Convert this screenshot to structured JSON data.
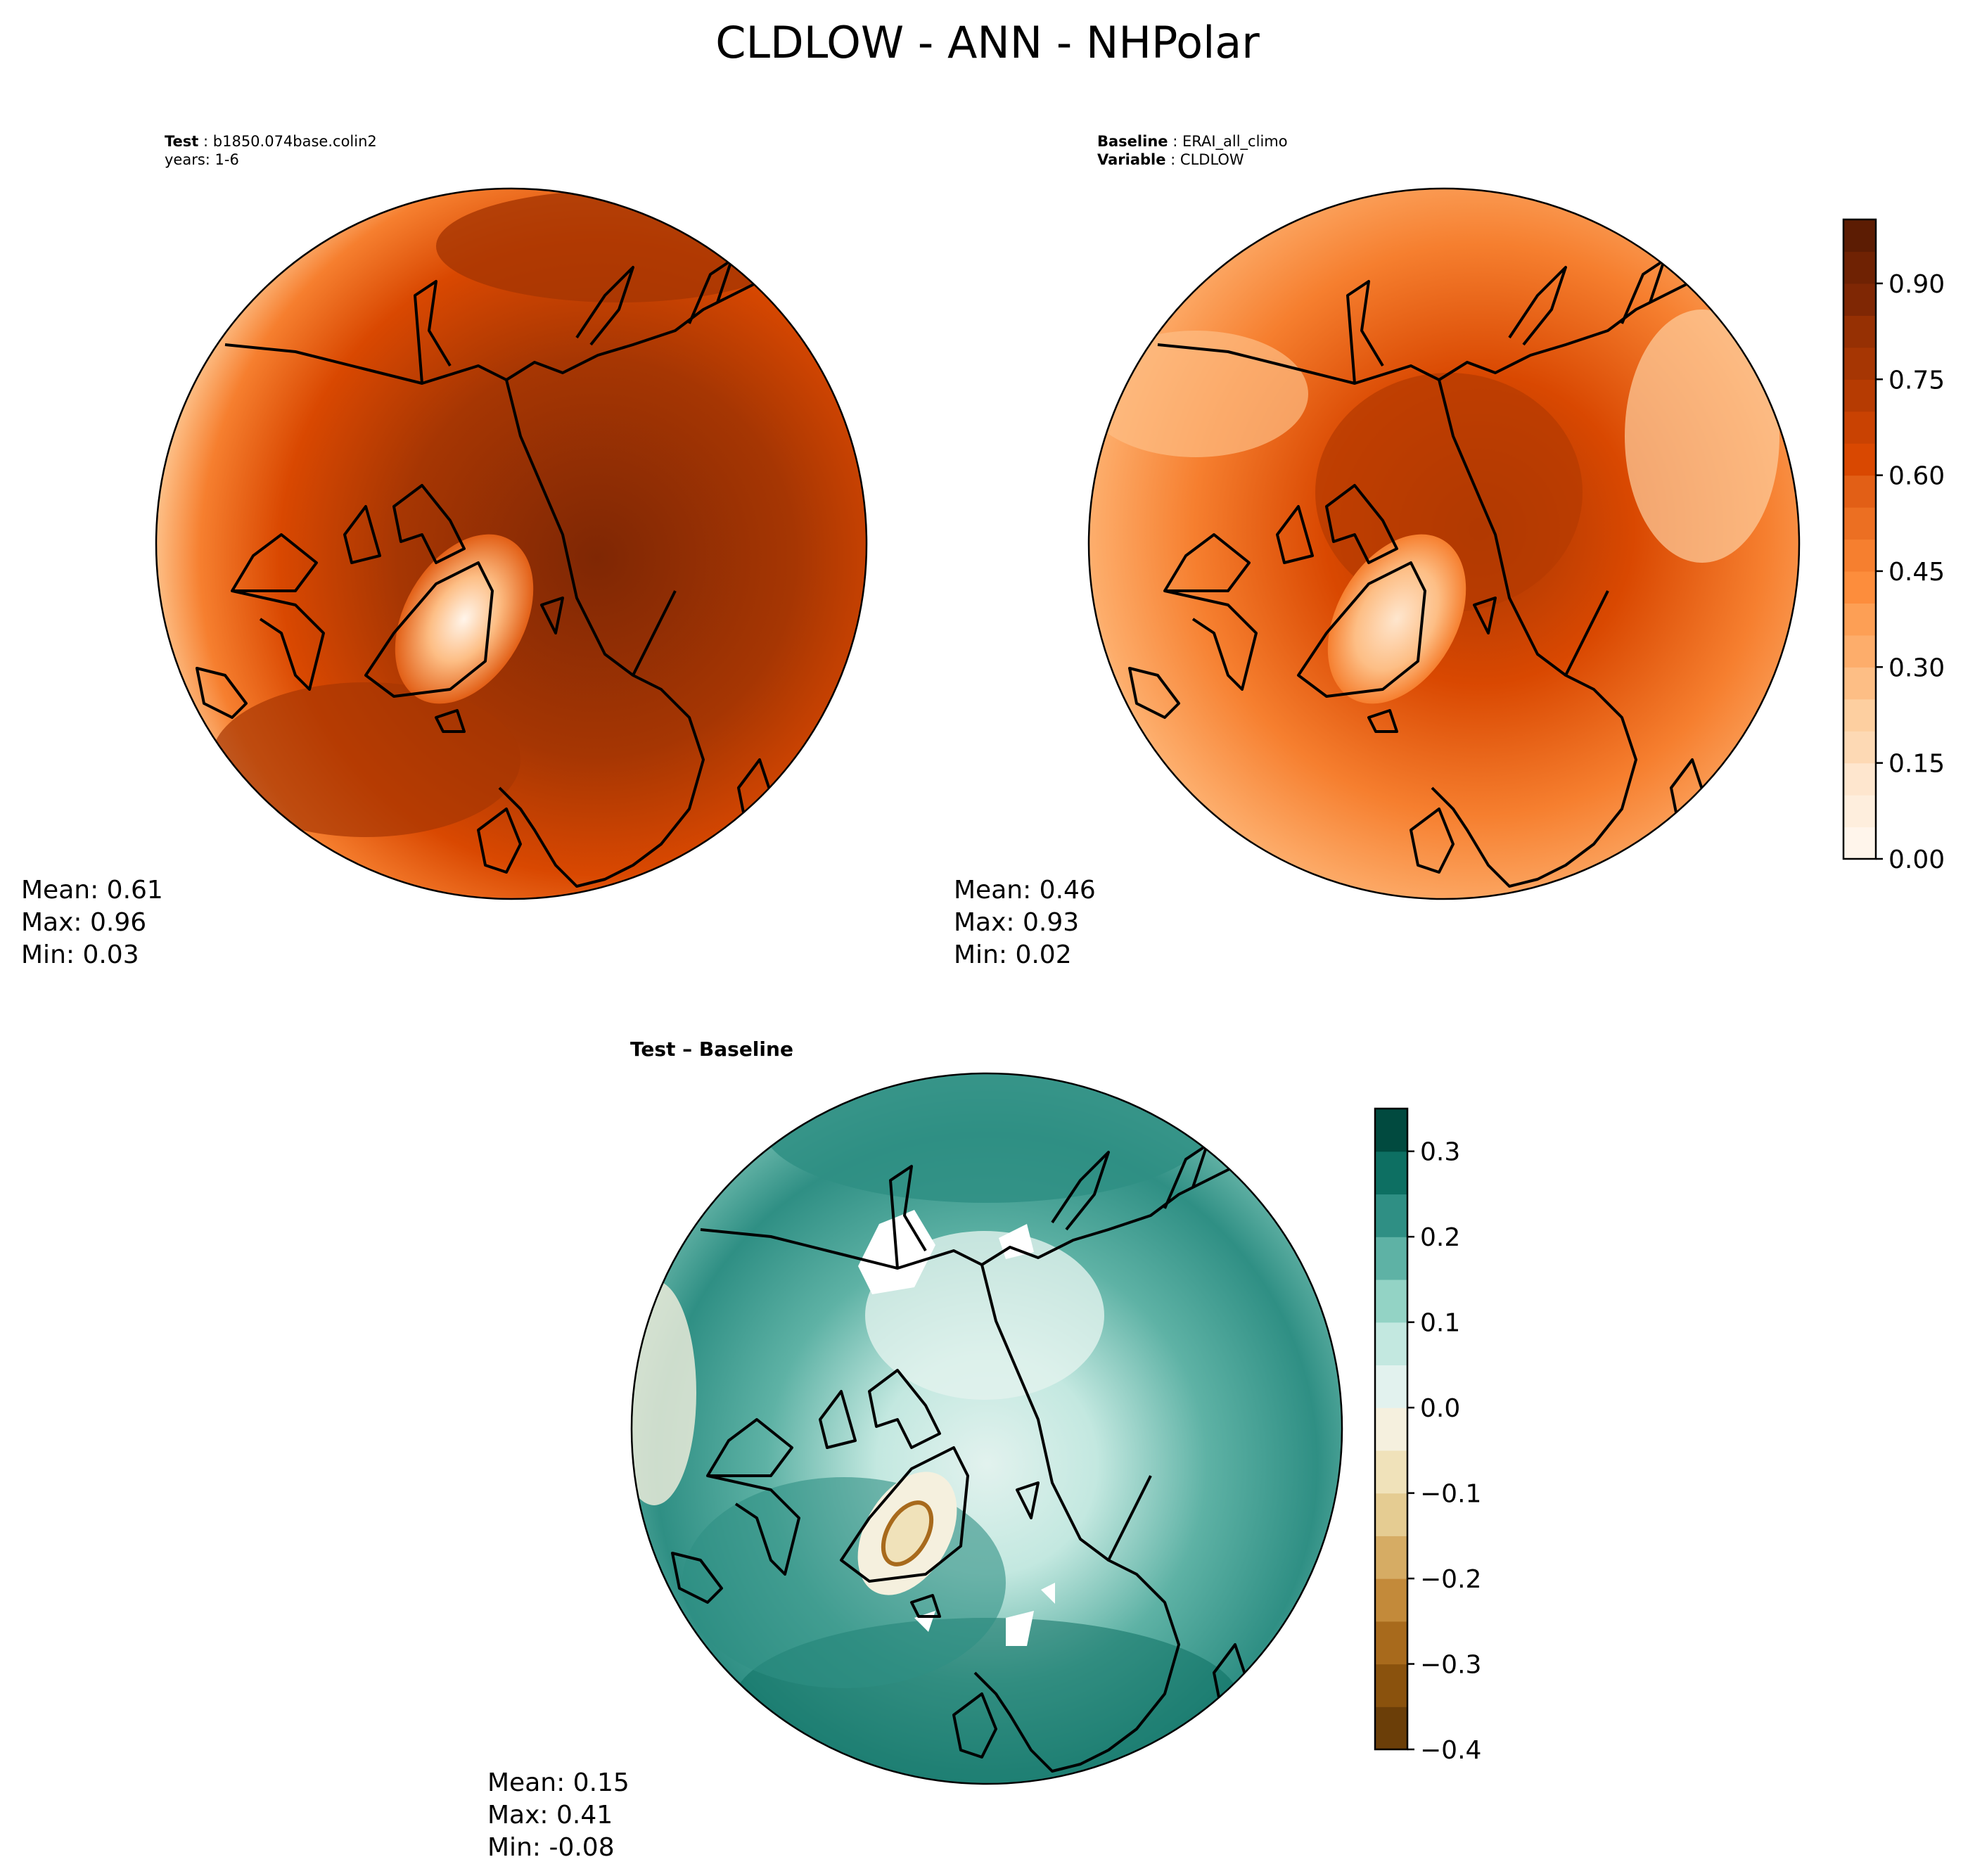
{
  "chart_data": {
    "title": "CLDLOW - ANN - NHPolar",
    "type": "heatmap",
    "projection": "north-polar-stereographic",
    "panels": [
      {
        "id": "test",
        "info": [
          {
            "key": "Test",
            "value": "b1850.074base.colin2"
          },
          {
            "key": "",
            "value": "years: 1-6"
          }
        ],
        "stats": {
          "Mean": "0.61",
          "Max": "0.96",
          "Min": "0.03"
        }
      },
      {
        "id": "baseline",
        "info": [
          {
            "key": "Baseline",
            "value": "ERAI_all_climo"
          },
          {
            "key": "Variable",
            "value": "CLDLOW"
          }
        ],
        "stats": {
          "Mean": "0.46",
          "Max": "0.93",
          "Min": "0.02"
        }
      },
      {
        "id": "diff",
        "title": "Test – Baseline",
        "stats": {
          "Mean": "0.15",
          "Max": "0.41",
          "Min": "-0.08"
        }
      }
    ],
    "colorbars": [
      {
        "id": "cbar-main",
        "range": [
          0,
          1.0
        ],
        "levels": 20,
        "ticks": [
          0.0,
          0.15,
          0.3,
          0.45,
          0.6,
          0.75,
          0.9
        ],
        "tick_labels": [
          "0.00",
          "0.15",
          "0.30",
          "0.45",
          "0.60",
          "0.75",
          "0.90"
        ],
        "colors": [
          "#fff5eb",
          "#feeedd",
          "#fee6ce",
          "#fdd9b4",
          "#fdcfa0",
          "#fdbe85",
          "#fdad6b",
          "#fd9f55",
          "#fd8d3c",
          "#f67f2f",
          "#ec6f22",
          "#e25f16",
          "#d94801",
          "#c94202",
          "#b63b02",
          "#a63603",
          "#963003",
          "#7f2704",
          "#6f2203",
          "#5c1c03"
        ]
      },
      {
        "id": "cbar-diff",
        "range": [
          -0.4,
          0.35
        ],
        "levels": 15,
        "ticks": [
          -0.4,
          -0.3,
          -0.2,
          -0.1,
          0.0,
          0.1,
          0.2,
          0.3
        ],
        "tick_labels": [
          "−0.4",
          "−0.3",
          "−0.2",
          "−0.1",
          "0.0",
          "0.1",
          "0.2",
          "0.3"
        ],
        "colors": [
          "#6b3e08",
          "#8a520d",
          "#a86a1c",
          "#c38a3a",
          "#d6ac64",
          "#e5cc92",
          "#f0e2ba",
          "#f5f0de",
          "#e2f2ee",
          "#c3e8e0",
          "#93d3c5",
          "#5eb2a5",
          "#2f8f84",
          "#0d6f62",
          "#014a3f"
        ]
      }
    ]
  }
}
